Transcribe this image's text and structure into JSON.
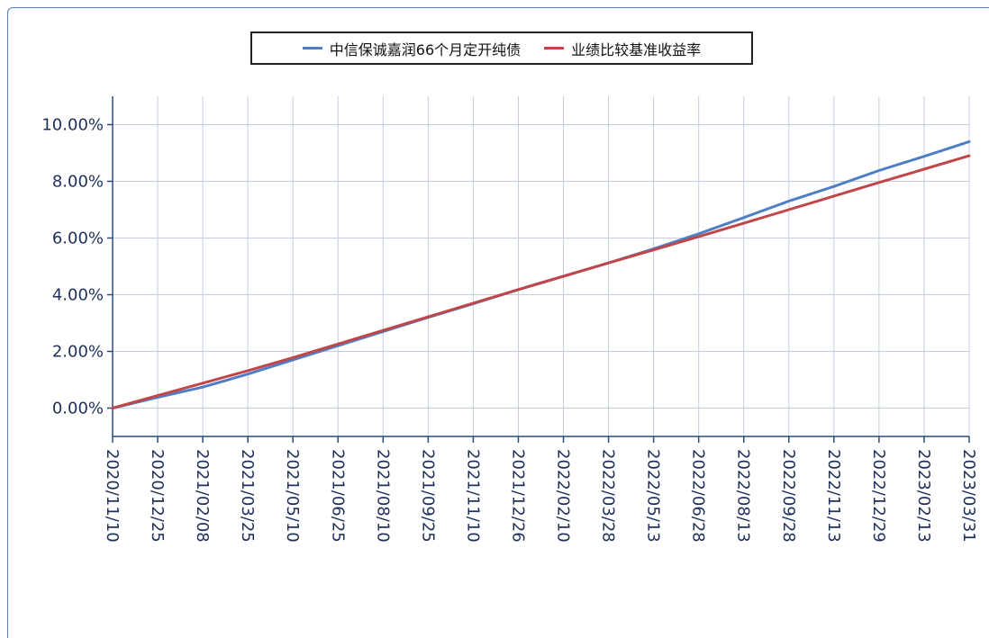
{
  "chart_data": {
    "type": "line",
    "title": "",
    "xlabel": "",
    "ylabel": "",
    "x_tick_labels": [
      "2020/11/10",
      "2020/12/25",
      "2021/02/08",
      "2021/03/25",
      "2021/05/10",
      "2021/06/25",
      "2021/08/10",
      "2021/09/25",
      "2021/11/10",
      "2021/12/26",
      "2022/02/10",
      "2022/03/28",
      "2022/05/13",
      "2022/06/28",
      "2022/08/13",
      "2022/09/28",
      "2022/11/13",
      "2022/12/29",
      "2023/02/13",
      "2023/03/31"
    ],
    "y_tick_labels": [
      "0.00%",
      "2.00%",
      "4.00%",
      "6.00%",
      "8.00%",
      "10.00%"
    ],
    "y_ticks": [
      0,
      2,
      4,
      6,
      8,
      10
    ],
    "ylim": [
      -1,
      11
    ],
    "grid": true,
    "legend_position": "top-center",
    "series": [
      {
        "name": "中信保诚嘉润66个月定开纯债",
        "color": "#4f7ec4",
        "values": [
          0.0,
          0.38,
          0.74,
          1.2,
          1.7,
          2.2,
          2.7,
          3.2,
          3.68,
          4.18,
          4.65,
          5.12,
          5.62,
          6.15,
          6.72,
          7.3,
          7.82,
          8.38,
          8.88,
          9.4
        ]
      },
      {
        "name": "业绩比较基准收益率",
        "color": "#c0464a",
        "values": [
          0.0,
          0.44,
          0.88,
          1.32,
          1.78,
          2.26,
          2.74,
          3.22,
          3.7,
          4.18,
          4.65,
          5.12,
          5.58,
          6.05,
          6.52,
          7.0,
          7.48,
          7.96,
          8.43,
          8.9
        ]
      }
    ]
  }
}
